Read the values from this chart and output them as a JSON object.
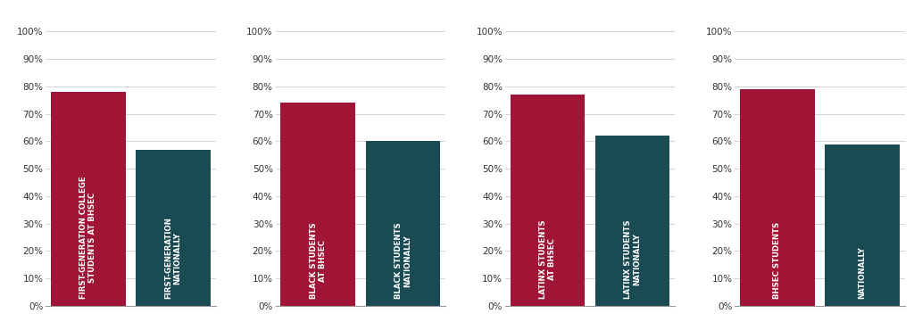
{
  "charts": [
    {
      "bars": [
        {
          "value": 0.78,
          "color": "#A01535",
          "label": "FIRST-GENERATION COLLEGE\nSTUDENTS AT BHSEC"
        },
        {
          "value": 0.57,
          "color": "#1A4A52",
          "label": "FIRST-GENERATION\nNATIONALLY"
        }
      ]
    },
    {
      "bars": [
        {
          "value": 0.74,
          "color": "#A01535",
          "label": "BLACK STUDENTS\nAT BHSEC"
        },
        {
          "value": 0.6,
          "color": "#1A4A52",
          "label": "BLACK STUDENTS\nNATIONALLY"
        }
      ]
    },
    {
      "bars": [
        {
          "value": 0.77,
          "color": "#A01535",
          "label": "LATINX STUDENTS\nAT BHSEC"
        },
        {
          "value": 0.62,
          "color": "#1A4A52",
          "label": "LATINX STUDENTS\nNATIONALLY"
        }
      ]
    },
    {
      "bars": [
        {
          "value": 0.79,
          "color": "#A01535",
          "label": "BHSEC STUDENTS"
        },
        {
          "value": 0.59,
          "color": "#1A4A52",
          "label": "NATIONALLY"
        }
      ]
    }
  ],
  "background_color": "#ffffff",
  "grid_color": "#cccccc",
  "yticks": [
    0.0,
    0.1,
    0.2,
    0.3,
    0.4,
    0.5,
    0.6,
    0.7,
    0.8,
    0.9,
    1.0
  ],
  "yticklabels": [
    "0%",
    "10%",
    "20%",
    "30%",
    "40%",
    "50%",
    "60%",
    "70%",
    "80%",
    "90%",
    "100%"
  ],
  "bar_label_fontsize": 6.2,
  "bar_label_color": "white",
  "bar_label_fontweight": "bold",
  "tick_fontsize": 7.5,
  "tick_color": "#333333"
}
